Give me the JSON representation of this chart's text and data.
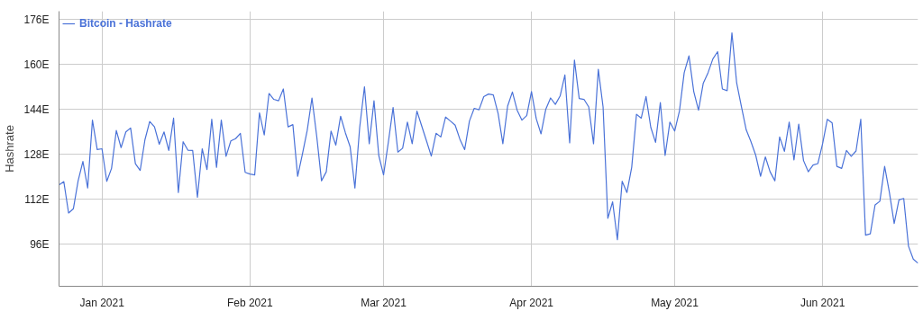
{
  "chart_data": {
    "type": "line",
    "ylabel": "Hashrate",
    "legend": "top left",
    "grid": true,
    "marker": "none",
    "line_style": "solid",
    "xlim": [
      "2020-12-23",
      "2021-06-21"
    ],
    "ylim": [
      81,
      179
    ],
    "xticks": [
      {
        "value": "2021-01-01",
        "label": "Jan 2021"
      },
      {
        "value": "2021-02-01",
        "label": "Feb 2021"
      },
      {
        "value": "2021-03-01",
        "label": "Mar 2021"
      },
      {
        "value": "2021-04-01",
        "label": "Apr 2021"
      },
      {
        "value": "2021-05-01",
        "label": "May 2021"
      },
      {
        "value": "2021-06-01",
        "label": "Jun 2021"
      }
    ],
    "yticks": [
      {
        "value": 96,
        "label": "96E"
      },
      {
        "value": 112,
        "label": "112E"
      },
      {
        "value": 128,
        "label": "128E"
      },
      {
        "value": 144,
        "label": "144E"
      },
      {
        "value": 160,
        "label": "160E"
      },
      {
        "value": 176,
        "label": "176E"
      }
    ],
    "x": [
      "2020-12-23",
      "2020-12-24",
      "2020-12-25",
      "2020-12-26",
      "2020-12-27",
      "2020-12-28",
      "2020-12-29",
      "2020-12-30",
      "2020-12-31",
      "2021-01-01",
      "2021-01-02",
      "2021-01-03",
      "2021-01-04",
      "2021-01-05",
      "2021-01-06",
      "2021-01-07",
      "2021-01-08",
      "2021-01-09",
      "2021-01-10",
      "2021-01-11",
      "2021-01-12",
      "2021-01-13",
      "2021-01-14",
      "2021-01-15",
      "2021-01-16",
      "2021-01-17",
      "2021-01-18",
      "2021-01-19",
      "2021-01-20",
      "2021-01-21",
      "2021-01-22",
      "2021-01-23",
      "2021-01-24",
      "2021-01-25",
      "2021-01-26",
      "2021-01-27",
      "2021-01-28",
      "2021-01-29",
      "2021-01-30",
      "2021-01-31",
      "2021-02-01",
      "2021-02-02",
      "2021-02-03",
      "2021-02-04",
      "2021-02-05",
      "2021-02-06",
      "2021-02-07",
      "2021-02-08",
      "2021-02-09",
      "2021-02-10",
      "2021-02-11",
      "2021-02-12",
      "2021-02-13",
      "2021-02-14",
      "2021-02-15",
      "2021-02-16",
      "2021-02-17",
      "2021-02-18",
      "2021-02-19",
      "2021-02-20",
      "2021-02-21",
      "2021-02-22",
      "2021-02-23",
      "2021-02-24",
      "2021-02-25",
      "2021-02-26",
      "2021-02-27",
      "2021-02-28",
      "2021-03-01",
      "2021-03-02",
      "2021-03-03",
      "2021-03-04",
      "2021-03-05",
      "2021-03-06",
      "2021-03-07",
      "2021-03-08",
      "2021-03-09",
      "2021-03-10",
      "2021-03-11",
      "2021-03-12",
      "2021-03-13",
      "2021-03-14",
      "2021-03-15",
      "2021-03-16",
      "2021-03-17",
      "2021-03-18",
      "2021-03-19",
      "2021-03-20",
      "2021-03-21",
      "2021-03-22",
      "2021-03-23",
      "2021-03-24",
      "2021-03-25",
      "2021-03-26",
      "2021-03-27",
      "2021-03-28",
      "2021-03-29",
      "2021-03-30",
      "2021-03-31",
      "2021-04-01",
      "2021-04-02",
      "2021-04-03",
      "2021-04-04",
      "2021-04-05",
      "2021-04-06",
      "2021-04-07",
      "2021-04-08",
      "2021-04-09",
      "2021-04-10",
      "2021-04-11",
      "2021-04-12",
      "2021-04-13",
      "2021-04-14",
      "2021-04-15",
      "2021-04-16",
      "2021-04-17",
      "2021-04-18",
      "2021-04-19",
      "2021-04-20",
      "2021-04-21",
      "2021-04-22",
      "2021-04-23",
      "2021-04-24",
      "2021-04-25",
      "2021-04-26",
      "2021-04-27",
      "2021-04-28",
      "2021-04-29",
      "2021-04-30",
      "2021-05-01",
      "2021-05-02",
      "2021-05-03",
      "2021-05-04",
      "2021-05-05",
      "2021-05-06",
      "2021-05-07",
      "2021-05-08",
      "2021-05-09",
      "2021-05-10",
      "2021-05-11",
      "2021-05-12",
      "2021-05-13",
      "2021-05-14",
      "2021-05-15",
      "2021-05-16",
      "2021-05-17",
      "2021-05-18",
      "2021-05-19",
      "2021-05-20",
      "2021-05-21",
      "2021-05-22",
      "2021-05-23",
      "2021-05-24",
      "2021-05-25",
      "2021-05-26",
      "2021-05-27",
      "2021-05-28",
      "2021-05-29",
      "2021-05-30",
      "2021-05-31",
      "2021-06-01",
      "2021-06-02",
      "2021-06-03",
      "2021-06-04",
      "2021-06-05",
      "2021-06-06",
      "2021-06-07",
      "2021-06-08",
      "2021-06-09",
      "2021-06-10",
      "2021-06-11",
      "2021-06-12",
      "2021-06-13",
      "2021-06-14",
      "2021-06-15",
      "2021-06-16",
      "2021-06-17",
      "2021-06-18",
      "2021-06-19",
      "2021-06-20",
      "2021-06-21"
    ],
    "series": [
      {
        "name": "Bitcoin - Hashrate",
        "color": "#4a72d8",
        "values": [
          117.1,
          118.3,
          107.1,
          108.6,
          118.6,
          125.5,
          116,
          140.2,
          129.7,
          130,
          118.4,
          123,
          136.5,
          130.4,
          136,
          137.4,
          124.7,
          122.3,
          133.2,
          139.7,
          137.8,
          131.6,
          136,
          129.4,
          140.9,
          114.4,
          132.5,
          129.5,
          129.4,
          112.7,
          130,
          122.6,
          140.5,
          123.4,
          140.2,
          127.3,
          132.8,
          133.6,
          135.5,
          121.6,
          121,
          120.7,
          142.8,
          134.9,
          149.7,
          147.6,
          147.1,
          151.3,
          137.8,
          138.6,
          120.2,
          128.1,
          136.5,
          148.1,
          134.4,
          118.6,
          121.8,
          136.3,
          131.3,
          141.6,
          135.7,
          130.7,
          116,
          137.6,
          152.1,
          131.8,
          147.1,
          127.6,
          120.7,
          132.3,
          144.7,
          128.8,
          130.2,
          139.5,
          131.8,
          143.4,
          138.1,
          132.8,
          127.4,
          135.5,
          134.2,
          141.3,
          139.9,
          138.4,
          133.4,
          129.7,
          139.9,
          144.4,
          143.9,
          148.6,
          149.5,
          149.2,
          142.6,
          131.8,
          145.2,
          150.2,
          143.7,
          140.2,
          141.8,
          150.4,
          140.7,
          135.3,
          144.1,
          148.1,
          145.8,
          148.8,
          156.3,
          132.1,
          161.6,
          147.9,
          147.6,
          144.9,
          131.8,
          158.3,
          144.9,
          105.2,
          111.1,
          97.6,
          118.4,
          114.4,
          123.4,
          142.3,
          140.9,
          148.6,
          137.6,
          132.3,
          146.5,
          127.6,
          139.5,
          136.3,
          143.4,
          157.1,
          163.1,
          150.4,
          143.7,
          153.4,
          157.1,
          162,
          164.6,
          151.3,
          150.7,
          171.3,
          153.4,
          144.9,
          136.7,
          132.5,
          127.6,
          120.2,
          127.1,
          121.8,
          118.6,
          134.2,
          129.1,
          139.5,
          126,
          138.8,
          125.8,
          121.8,
          124.2,
          124.7,
          131.8,
          140.5,
          139.2,
          123.7,
          123,
          129.4,
          127.3,
          129.2,
          140.5,
          99.2,
          99.7,
          110,
          111.3,
          123.7,
          114.4,
          103.4,
          111.8,
          112.3,
          95.3,
          90.7,
          89.2
        ]
      }
    ]
  }
}
